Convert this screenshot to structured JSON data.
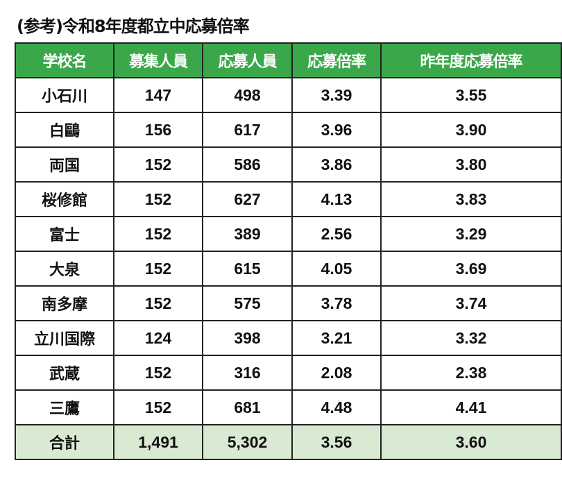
{
  "title": "(参考)令和8年度都立中応募倍率",
  "colors": {
    "header_bg": "#3aa84a",
    "total_bg": "#d9ead3"
  },
  "table": {
    "headers": [
      "学校名",
      "募集人員",
      "応募人員",
      "応募倍率",
      "昨年度応募倍率"
    ],
    "rows": [
      [
        "小石川",
        "147",
        "498",
        "3.39",
        "3.55"
      ],
      [
        "白鷗",
        "156",
        "617",
        "3.96",
        "3.90"
      ],
      [
        "両国",
        "152",
        "586",
        "3.86",
        "3.80"
      ],
      [
        "桜修館",
        "152",
        "627",
        "4.13",
        "3.83"
      ],
      [
        "富士",
        "152",
        "389",
        "2.56",
        "3.29"
      ],
      [
        "大泉",
        "152",
        "615",
        "4.05",
        "3.69"
      ],
      [
        "南多摩",
        "152",
        "575",
        "3.78",
        "3.74"
      ],
      [
        "立川国際",
        "124",
        "398",
        "3.21",
        "3.32"
      ],
      [
        "武蔵",
        "152",
        "316",
        "2.08",
        "2.38"
      ],
      [
        "三鷹",
        "152",
        "681",
        "4.48",
        "4.41"
      ]
    ],
    "total": [
      "合計",
      "1,491",
      "5,302",
      "3.56",
      "3.60"
    ]
  }
}
